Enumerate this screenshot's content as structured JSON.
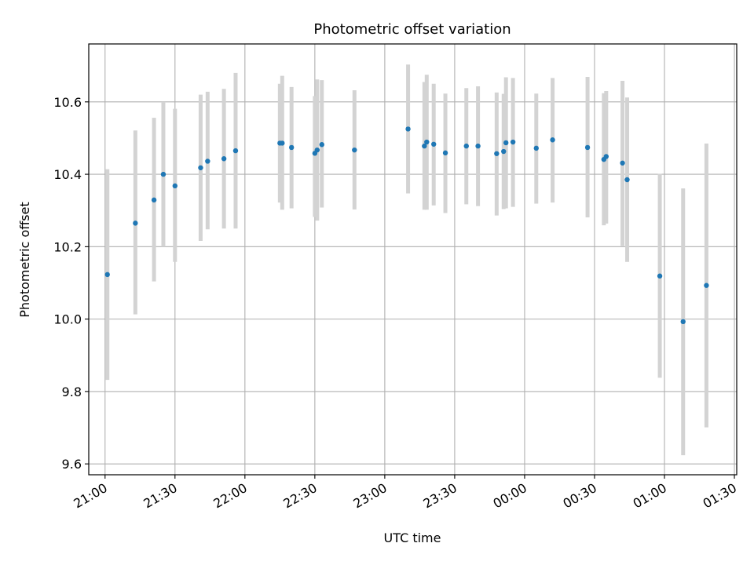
{
  "chart_data": {
    "type": "scatter",
    "title": "Photometric offset variation",
    "xlabel": "UTC time",
    "ylabel": "Photometric offset",
    "x_unit": "hh:mm",
    "xlim": [
      "20:53",
      "01:31"
    ],
    "ylim": [
      9.57,
      10.76
    ],
    "x_ticks": [
      "21:00",
      "21:30",
      "22:00",
      "22:30",
      "23:00",
      "23:30",
      "00:00",
      "00:30",
      "01:00",
      "01:30"
    ],
    "y_ticks": [
      9.6,
      9.8,
      10.0,
      10.2,
      10.4,
      10.6
    ],
    "y_tick_labels": [
      "9.6",
      "9.8",
      "10.0",
      "10.2",
      "10.4",
      "10.6"
    ],
    "grid": true,
    "marker_color": "#1f77b4",
    "errorbar_color": "#d3d3d3",
    "points": [
      {
        "x": "21:01",
        "y": 10.123,
        "low": 9.832,
        "high": 10.414
      },
      {
        "x": "21:13",
        "y": 10.265,
        "low": 10.013,
        "high": 10.521
      },
      {
        "x": "21:21",
        "y": 10.329,
        "low": 10.104,
        "high": 10.556
      },
      {
        "x": "21:25",
        "y": 10.4,
        "low": 10.2,
        "high": 10.6
      },
      {
        "x": "21:30",
        "y": 10.368,
        "low": 10.158,
        "high": 10.581
      },
      {
        "x": "21:41",
        "y": 10.418,
        "low": 10.216,
        "high": 10.62
      },
      {
        "x": "21:44",
        "y": 10.436,
        "low": 10.248,
        "high": 10.628
      },
      {
        "x": "21:51",
        "y": 10.443,
        "low": 10.25,
        "high": 10.636
      },
      {
        "x": "21:56",
        "y": 10.465,
        "low": 10.25,
        "high": 10.68
      },
      {
        "x": "22:15",
        "y": 10.486,
        "low": 10.322,
        "high": 10.65
      },
      {
        "x": "22:16",
        "y": 10.486,
        "low": 10.302,
        "high": 10.672
      },
      {
        "x": "22:20",
        "y": 10.474,
        "low": 10.306,
        "high": 10.641
      },
      {
        "x": "22:30",
        "y": 10.458,
        "low": 10.282,
        "high": 10.616
      },
      {
        "x": "22:31",
        "y": 10.467,
        "low": 10.272,
        "high": 10.662
      },
      {
        "x": "22:33",
        "y": 10.482,
        "low": 10.308,
        "high": 10.66
      },
      {
        "x": "22:47",
        "y": 10.467,
        "low": 10.303,
        "high": 10.632
      },
      {
        "x": "23:10",
        "y": 10.525,
        "low": 10.347,
        "high": 10.703
      },
      {
        "x": "23:17",
        "y": 10.478,
        "low": 10.302,
        "high": 10.655
      },
      {
        "x": "23:18",
        "y": 10.489,
        "low": 10.302,
        "high": 10.675
      },
      {
        "x": "23:21",
        "y": 10.483,
        "low": 10.314,
        "high": 10.65
      },
      {
        "x": "23:26",
        "y": 10.459,
        "low": 10.293,
        "high": 10.623
      },
      {
        "x": "23:35",
        "y": 10.478,
        "low": 10.317,
        "high": 10.638
      },
      {
        "x": "23:40",
        "y": 10.478,
        "low": 10.312,
        "high": 10.643
      },
      {
        "x": "23:48",
        "y": 10.457,
        "low": 10.286,
        "high": 10.626
      },
      {
        "x": "23:51",
        "y": 10.463,
        "low": 10.304,
        "high": 10.622
      },
      {
        "x": "23:52",
        "y": 10.487,
        "low": 10.306,
        "high": 10.668
      },
      {
        "x": "23:55",
        "y": 10.489,
        "low": 10.31,
        "high": 10.666
      },
      {
        "x": "00:05",
        "y": 10.472,
        "low": 10.319,
        "high": 10.623
      },
      {
        "x": "00:12",
        "y": 10.495,
        "low": 10.322,
        "high": 10.666
      },
      {
        "x": "00:27",
        "y": 10.474,
        "low": 10.281,
        "high": 10.669
      },
      {
        "x": "00:34",
        "y": 10.441,
        "low": 10.259,
        "high": 10.624
      },
      {
        "x": "00:35",
        "y": 10.449,
        "low": 10.264,
        "high": 10.63
      },
      {
        "x": "00:42",
        "y": 10.431,
        "low": 10.202,
        "high": 10.658
      },
      {
        "x": "00:44",
        "y": 10.385,
        "low": 10.158,
        "high": 10.612
      },
      {
        "x": "00:58",
        "y": 10.119,
        "low": 9.838,
        "high": 10.401
      },
      {
        "x": "01:08",
        "y": 9.993,
        "low": 9.624,
        "high": 10.361
      },
      {
        "x": "01:18",
        "y": 10.093,
        "low": 9.701,
        "high": 10.485
      }
    ]
  }
}
